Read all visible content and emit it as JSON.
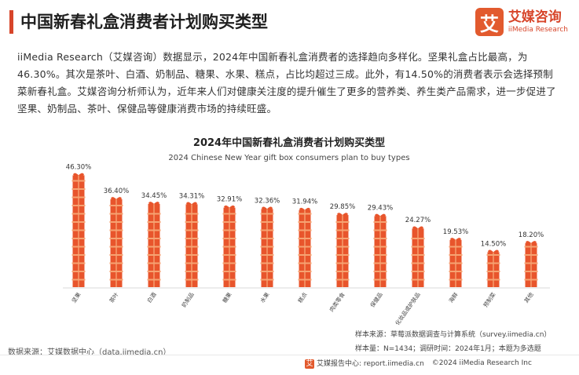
{
  "header": {
    "title": "中国新春礼盒消费者计划购买类型",
    "logo_mark": "艾",
    "logo_cn": "艾媒咨询",
    "logo_en": "iiMedia Research"
  },
  "summary": "iiMedia Research（艾媒咨询）数据显示，2024年中国新春礼盒消费者的选择趋向多样化。坚果礼盒占比最高，为46.30%。其次是茶叶、白酒、奶制品、糖果、水果、糕点，占比均超过三成。此外，有14.50%的消费者表示会选择预制菜新春礼盒。艾媒咨询分析师认为，近年来人们对健康关注度的提升催生了更多的营养类、养生类产品需求，进一步促进了坚果、奶制品、茶叶、保健品等健康消费市场的持续旺盛。",
  "chart_data": {
    "type": "bar",
    "title": "2024年中国新春礼盒消费者计划购买类型",
    "subtitle": "2024 Chinese New Year gift box consumers plan to buy types",
    "categories": [
      "坚果",
      "茶叶",
      "白酒",
      "奶制品",
      "糖果",
      "水果",
      "糕点",
      "肉类零食",
      "保健品",
      "化妆品或护肤品",
      "海鲜",
      "预制菜",
      "其他"
    ],
    "values": [
      46.3,
      36.4,
      34.45,
      34.31,
      32.91,
      32.36,
      31.94,
      29.85,
      29.43,
      24.27,
      19.53,
      14.5,
      18.2
    ],
    "value_labels": [
      "46.30%",
      "36.40%",
      "34.45%",
      "34.31%",
      "32.91%",
      "32.36%",
      "31.94%",
      "29.85%",
      "29.43%",
      "24.27%",
      "19.53%",
      "14.50%",
      "18.20%"
    ],
    "xlabel": "",
    "ylabel": "",
    "ylim": [
      0,
      50
    ],
    "grid": false,
    "bar_color": "#e8552c",
    "bar_light_color": "#f6a372"
  },
  "notes": {
    "sample_source": "样本来源：草莓派数据调查与计算系统（survey.iimedia.cn）",
    "sample_info": "样本量：N=1434；调研时间：2024年1月；本题为多选题"
  },
  "data_source": "数据来源：艾媒数据中心（data.iimedia.cn）",
  "footer": {
    "brand": "艾媒报告中心: report.iimedia.cn",
    "copyright": "©2024 iiMedia Research Inc"
  }
}
